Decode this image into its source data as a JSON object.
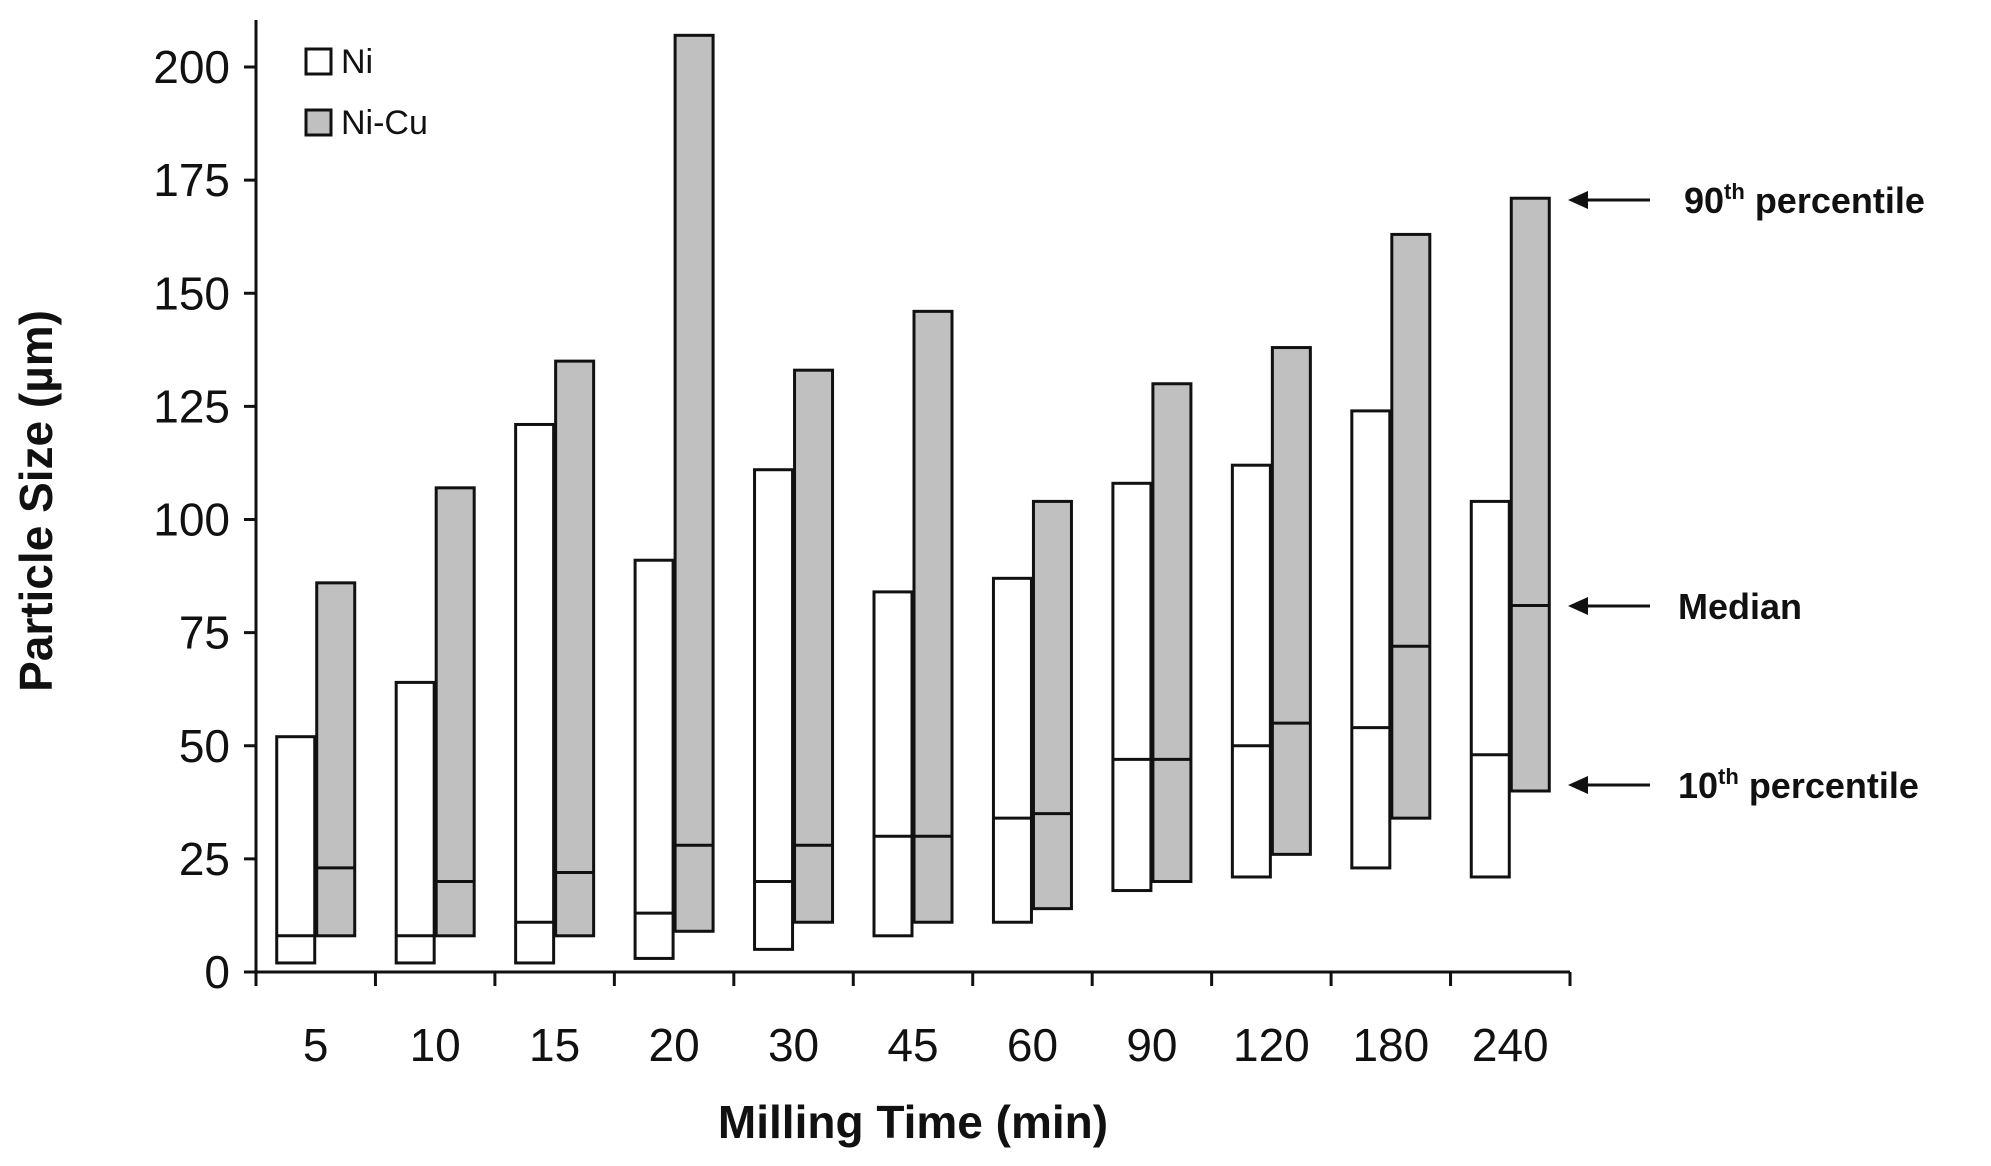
{
  "chart_data": {
    "type": "range-bar",
    "xlabel": "Milling Time (min)",
    "ylabel": "Particle Size (µm)",
    "ylim": [
      0,
      210
    ],
    "yticks": [
      0,
      25,
      50,
      75,
      100,
      125,
      150,
      175,
      200
    ],
    "categories": [
      "5",
      "10",
      "15",
      "20",
      "30",
      "45",
      "60",
      "90",
      "120",
      "180",
      "240"
    ],
    "series": [
      {
        "name": "Ni",
        "color": "#ffffff",
        "p10": [
          2,
          2,
          2,
          3,
          5,
          8,
          11,
          18,
          21,
          23,
          21
        ],
        "median": [
          8,
          8,
          11,
          13,
          20,
          30,
          34,
          47,
          50,
          54,
          48
        ],
        "p90": [
          52,
          64,
          121,
          91,
          111,
          84,
          87,
          108,
          112,
          124,
          104
        ]
      },
      {
        "name": "Ni-Cu",
        "color": "#c0c0c0",
        "p10": [
          8,
          8,
          8,
          9,
          11,
          11,
          14,
          20,
          26,
          34,
          40
        ],
        "median": [
          23,
          20,
          22,
          28,
          28,
          30,
          35,
          47,
          55,
          72,
          81
        ],
        "p90": [
          86,
          107,
          135,
          207,
          133,
          146,
          104,
          130,
          138,
          163,
          171
        ]
      }
    ],
    "legend": {
      "position": "top-left",
      "entries": [
        "Ni",
        "Ni-Cu"
      ]
    },
    "annotations": [
      {
        "target": "p90",
        "text": "90",
        "sup": "th",
        "rest": " percentile"
      },
      {
        "target": "median",
        "text": "Median",
        "sup": "",
        "rest": ""
      },
      {
        "target": "p10",
        "text": "10",
        "sup": "th",
        "rest": " percentile"
      }
    ]
  }
}
